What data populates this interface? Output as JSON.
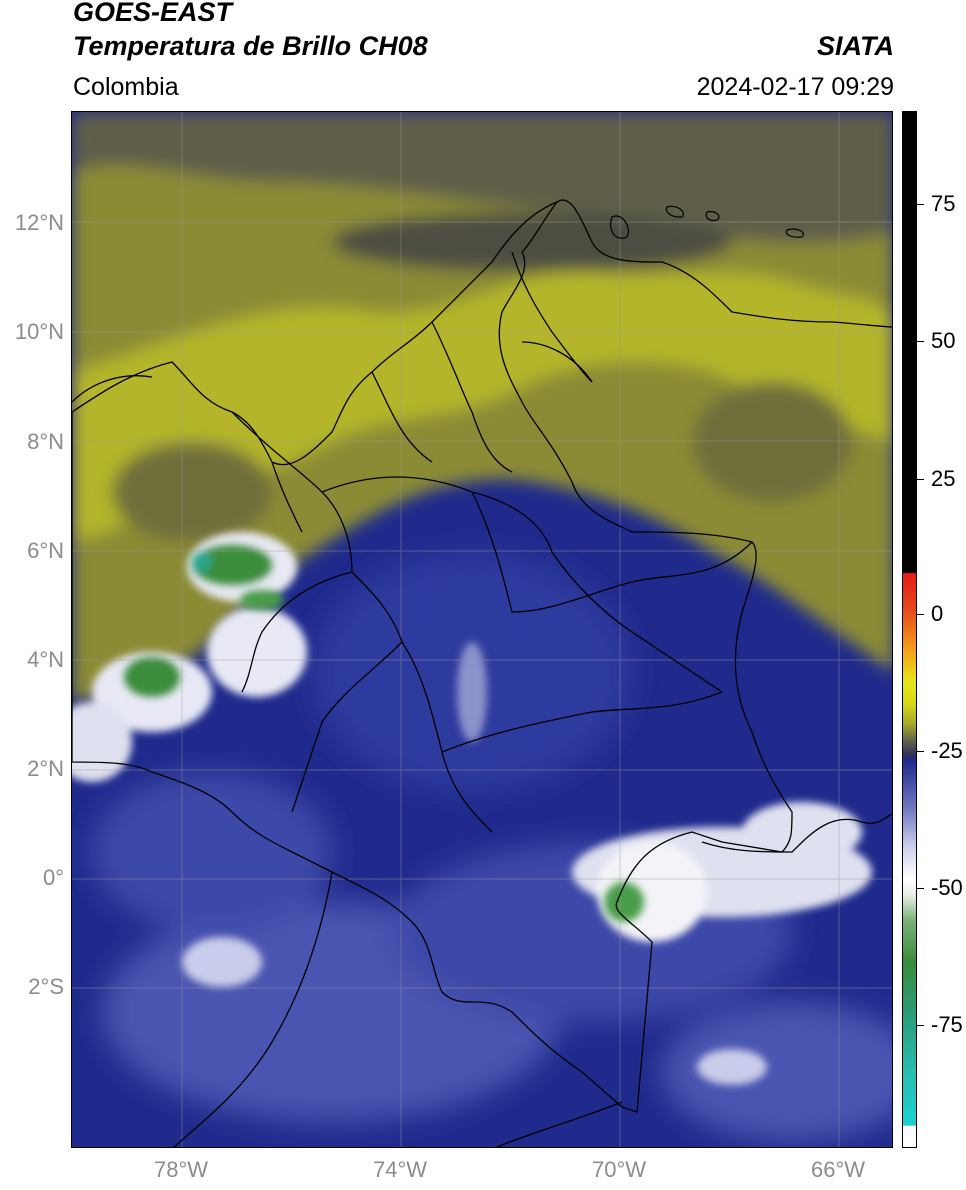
{
  "header": {
    "title_line1": "GOES-EAST",
    "title_line2": "Temperatura de Brillo CH08",
    "agency": "SIATA",
    "region": "Colombia",
    "datetime": "2024-02-17 09:29"
  },
  "map": {
    "lat_labels": [
      "12°N",
      "10°N",
      "8°N",
      "6°N",
      "4°N",
      "2°N",
      "0°",
      "2°S"
    ],
    "lon_labels": [
      "78°W",
      "74°W",
      "70°W",
      "66°W"
    ],
    "colors": {
      "background_blue": "#1f2a8c",
      "mid_blue": "#3d4aa8",
      "light_blue": "#8c93cc",
      "cloud_white": "#f2f2f5",
      "olive": "#a7a82a",
      "dark_olive": "#6e6e3a",
      "gray": "#5a5a55",
      "green": "#3a8c3a",
      "border_line": "#000000",
      "grid_line": "#9a9a9a"
    }
  },
  "colorbar": {
    "tick_labels": [
      "75",
      "50",
      "25",
      "0",
      "-25",
      "-50",
      "-75"
    ],
    "segments": [
      {
        "color": "#ffffff"
      },
      {
        "color": "#19d3d3"
      },
      {
        "color": "#2aa68a"
      },
      {
        "color": "#3a8c3a"
      },
      {
        "color": "#cfe3c9"
      },
      {
        "color": "#ffffff"
      },
      {
        "color": "#b6bbe0"
      },
      {
        "color": "#5d66b5"
      },
      {
        "color": "#1f2a8c"
      },
      {
        "color": "#444444"
      },
      {
        "color": "#a7a82a"
      },
      {
        "color": "#e6e61a"
      },
      {
        "color": "#f2a31a"
      },
      {
        "color": "#e64a1a"
      },
      {
        "color": "#e61a1a"
      },
      {
        "color": "#000000"
      }
    ]
  }
}
